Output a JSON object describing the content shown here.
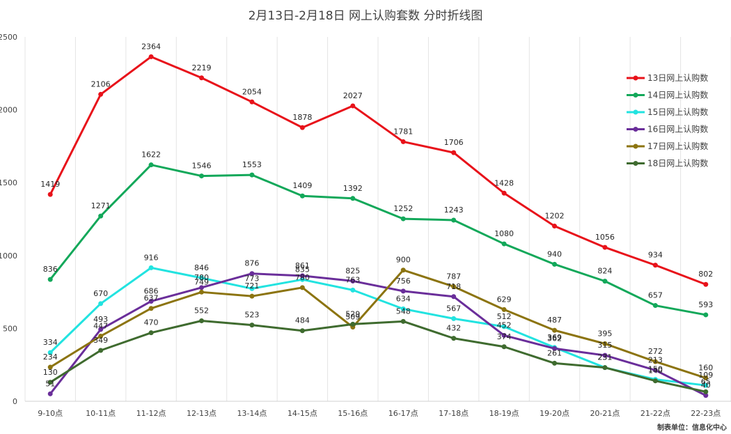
{
  "chart_data": {
    "type": "line",
    "title": "2月13日-2月18日 网上认购套数 分时折线图",
    "categories": [
      "9-10点",
      "10-11点",
      "11-12点",
      "12-13点",
      "13-14点",
      "14-15点",
      "15-16点",
      "16-17点",
      "17-18点",
      "18-19点",
      "19-20点",
      "20-21点",
      "21-22点",
      "22-23点"
    ],
    "ylim": [
      0,
      2500
    ],
    "yticks": [
      0,
      500,
      1000,
      1500,
      2000,
      2500
    ],
    "grid": "vertical",
    "legend": "top-right",
    "series": [
      {
        "name": "13日网上认购数",
        "color": "#e8121a",
        "values": [
          1419,
          2106,
          2364,
          2219,
          2054,
          1878,
          2027,
          1781,
          1706,
          1428,
          1202,
          1056,
          934,
          802
        ]
      },
      {
        "name": "14日网上认购数",
        "color": "#13a85a",
        "values": [
          836,
          1271,
          1622,
          1546,
          1553,
          1409,
          1392,
          1252,
          1243,
          1080,
          940,
          824,
          657,
          593
        ]
      },
      {
        "name": "15日网上认购数",
        "color": "#22e3e0",
        "values": [
          334,
          670,
          916,
          846,
          773,
          835,
          763,
          634,
          567,
          512,
          369,
          231,
          150,
          109
        ]
      },
      {
        "name": "16日网上认购数",
        "color": "#6a2e9a",
        "values": [
          51,
          493,
          686,
          780,
          876,
          861,
          825,
          756,
          718,
          452,
          362,
          315,
          213,
          40
        ]
      },
      {
        "name": "17日网上认购数",
        "color": "#8c7410",
        "values": [
          234,
          447,
          637,
          749,
          721,
          780,
          509,
          900,
          787,
          629,
          487,
          395,
          272,
          160
        ]
      },
      {
        "name": "18日网上认购数",
        "color": "#3f6b2f",
        "values": [
          130,
          349,
          470,
          552,
          523,
          484,
          529,
          548,
          432,
          374,
          261,
          231,
          140,
          65
        ]
      }
    ],
    "footer": "制表单位：信息化中心"
  }
}
